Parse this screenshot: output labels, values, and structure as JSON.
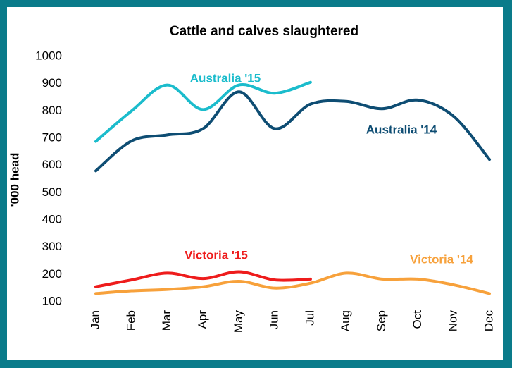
{
  "chart_data": {
    "type": "line",
    "title": "Cattle and calves slaughtered",
    "ylabel": "'000 head",
    "categories": [
      "Jan",
      "Feb",
      "Mar",
      "Apr",
      "May",
      "Jun",
      "Jul",
      "Aug",
      "Sep",
      "Oct",
      "Nov",
      "Dec"
    ],
    "series": [
      {
        "name": "Australia '15",
        "color": "#1bbccc",
        "values": [
          688,
          800,
          895,
          805,
          895,
          865,
          905,
          null,
          null,
          null,
          null,
          null
        ]
      },
      {
        "name": "Australia '14",
        "color": "#0e4d73",
        "values": [
          580,
          690,
          712,
          735,
          870,
          735,
          825,
          835,
          808,
          840,
          780,
          622
        ]
      },
      {
        "name": "Victoria '15",
        "color": "#ee1c1c",
        "values": [
          155,
          180,
          205,
          185,
          210,
          180,
          183,
          null,
          null,
          null,
          null,
          null
        ]
      },
      {
        "name": "Victoria '14",
        "color": "#f7a13b",
        "values": [
          130,
          140,
          145,
          155,
          175,
          150,
          168,
          205,
          183,
          183,
          162,
          130
        ]
      }
    ],
    "ylim": [
      100,
      1000
    ],
    "yticks": [
      100,
      200,
      300,
      400,
      500,
      600,
      700,
      800,
      900,
      1000
    ],
    "grid": false
  }
}
